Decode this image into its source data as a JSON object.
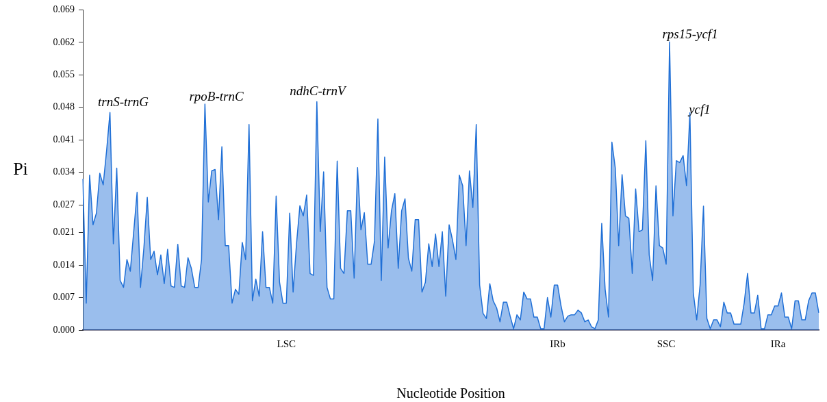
{
  "chart_data": {
    "type": "area",
    "xlabel": "Nucleotide Position",
    "ylabel": "Pi",
    "categories": [
      null,
      null,
      null,
      null,
      null,
      null,
      null,
      null,
      null,
      null,
      null,
      null,
      null,
      null,
      null,
      null,
      null,
      null,
      null,
      null,
      null,
      null,
      null,
      null,
      null,
      null,
      null,
      null,
      null,
      null,
      null,
      null,
      null,
      null,
      null,
      null,
      null,
      null,
      null,
      null,
      null,
      null,
      null,
      null,
      null,
      null,
      null,
      null,
      null,
      null,
      null,
      null,
      null,
      null,
      null,
      null,
      null,
      null,
      null,
      null,
      "LSC",
      null,
      null,
      null,
      null,
      null,
      null,
      null,
      null,
      null,
      null,
      null,
      null,
      null,
      null,
      null,
      null,
      null,
      null,
      null,
      null,
      null,
      null,
      null,
      null,
      null,
      null,
      null,
      null,
      null,
      null,
      null,
      null,
      null,
      null,
      null,
      null,
      null,
      null,
      null,
      null,
      null,
      null,
      null,
      null,
      null,
      null,
      null,
      null,
      null,
      null,
      null,
      null,
      null,
      null,
      null,
      null,
      null,
      null,
      null,
      null,
      null,
      null,
      null,
      null,
      null,
      null,
      null,
      null,
      null,
      null,
      null,
      null,
      null,
      null,
      null,
      null,
      null,
      null,
      null,
      "IRb",
      null,
      null,
      null,
      null,
      null,
      null,
      null,
      null,
      null,
      null,
      null,
      null,
      null,
      null,
      null,
      null,
      null,
      null,
      null,
      null,
      null,
      null,
      null,
      null,
      null,
      null,
      null,
      null,
      null,
      null,
      null,
      "SSC",
      null,
      null,
      null,
      null,
      null,
      null,
      null,
      null,
      null,
      null,
      null,
      null,
      null,
      null,
      null,
      null,
      null,
      null,
      null,
      null,
      null,
      null,
      null,
      null,
      null,
      null,
      null,
      null,
      null,
      null,
      null,
      null,
      "IRa",
      null,
      null,
      null,
      null,
      null,
      null,
      null,
      null,
      null,
      null,
      null,
      null
    ],
    "ylim": [
      0,
      0.069
    ],
    "yticks": [
      {
        "value": 0,
        "label": "0.000"
      },
      {
        "value": 0.007,
        "label": "0.007"
      },
      {
        "value": 0.014,
        "label": "0.014"
      },
      {
        "value": 0.021,
        "label": "0.021"
      },
      {
        "value": 0.027,
        "label": "0.027"
      },
      {
        "value": 0.034,
        "label": "0.034"
      },
      {
        "value": 0.041,
        "label": "0.041"
      },
      {
        "value": 0.048,
        "label": "0.048"
      },
      {
        "value": 0.055,
        "label": "0.055"
      },
      {
        "value": 0.062,
        "label": "0.062"
      },
      {
        "value": 0.069,
        "label": "0.069"
      }
    ],
    "annotations": [
      "trnS-trnG",
      "rpoB-trnC",
      "ndhC-trnV",
      "rps15-ycf1",
      "ycf1"
    ],
    "series": [
      {
        "color": "#1f6fd6",
        "values": [
          0.0326,
          0.0058,
          0.0334,
          0.0227,
          0.0252,
          0.0338,
          0.0313,
          0.0386,
          0.0469,
          0.0186,
          0.0349,
          0.0107,
          0.0092,
          0.0152,
          0.0127,
          0.0212,
          0.0297,
          0.0092,
          0.0177,
          0.0286,
          0.0152,
          0.017,
          0.0119,
          0.0162,
          0.01,
          0.0174,
          0.0095,
          0.0092,
          0.0185,
          0.0095,
          0.0092,
          0.0156,
          0.0133,
          0.0092,
          0.0092,
          0.0152,
          0.0487,
          0.0276,
          0.0343,
          0.0346,
          0.0238,
          0.0395,
          0.0182,
          0.0182,
          0.0058,
          0.0088,
          0.0077,
          0.0189,
          0.0152,
          0.0443,
          0.0063,
          0.011,
          0.0073,
          0.0212,
          0.0092,
          0.0092,
          0.0058,
          0.0289,
          0.0103,
          0.0058,
          0.0058,
          0.0252,
          0.0082,
          0.0186,
          0.0268,
          0.0246,
          0.0291,
          0.0122,
          0.0118,
          0.0492,
          0.0212,
          0.0341,
          0.0092,
          0.0067,
          0.0067,
          0.0364,
          0.0133,
          0.0122,
          0.0257,
          0.0257,
          0.0112,
          0.035,
          0.0216,
          0.0253,
          0.0142,
          0.0142,
          0.0192,
          0.0455,
          0.0107,
          0.0373,
          0.0177,
          0.0257,
          0.0294,
          0.0133,
          0.0257,
          0.0283,
          0.0155,
          0.0127,
          0.0238,
          0.0238,
          0.0082,
          0.0103,
          0.0186,
          0.0137,
          0.0207,
          0.0137,
          0.0212,
          0.0073,
          0.0227,
          0.0194,
          0.0152,
          0.0334,
          0.0311,
          0.0182,
          0.0343,
          0.0264,
          0.0443,
          0.0097,
          0.0036,
          0.0025,
          0.01,
          0.0063,
          0.0048,
          0.0018,
          0.006,
          0.006,
          0.003,
          0.0003,
          0.0033,
          0.0022,
          0.0082,
          0.0067,
          0.0067,
          0.0028,
          0.0028,
          0.0003,
          0.0003,
          0.007,
          0.0028,
          0.0097,
          0.0097,
          0.0052,
          0.0018,
          0.003,
          0.0033,
          0.0033,
          0.0043,
          0.0037,
          0.0018,
          0.0022,
          0.0007,
          0.0003,
          0.0022,
          0.023,
          0.0088,
          0.0028,
          0.0405,
          0.0349,
          0.0182,
          0.0335,
          0.0246,
          0.0241,
          0.0122,
          0.0304,
          0.0212,
          0.0216,
          0.0408,
          0.0162,
          0.0107,
          0.0311,
          0.0182,
          0.0177,
          0.0142,
          0.0621,
          0.0246,
          0.0365,
          0.0361,
          0.0376,
          0.0311,
          0.0468,
          0.008,
          0.0022,
          0.0097,
          0.0267,
          0.0025,
          0.0003,
          0.0022,
          0.0022,
          0.0007,
          0.006,
          0.0037,
          0.0037,
          0.0013,
          0.0013,
          0.0013,
          0.0058,
          0.0122,
          0.0037,
          0.0037,
          0.0075,
          0.0003,
          0.0003,
          0.0033,
          0.0033,
          0.0052,
          0.0052,
          0.008,
          0.0028,
          0.0028,
          0.0003,
          0.0063,
          0.0063,
          0.0022,
          0.0022,
          0.0063,
          0.008,
          0.008,
          0.0037
        ]
      }
    ]
  }
}
